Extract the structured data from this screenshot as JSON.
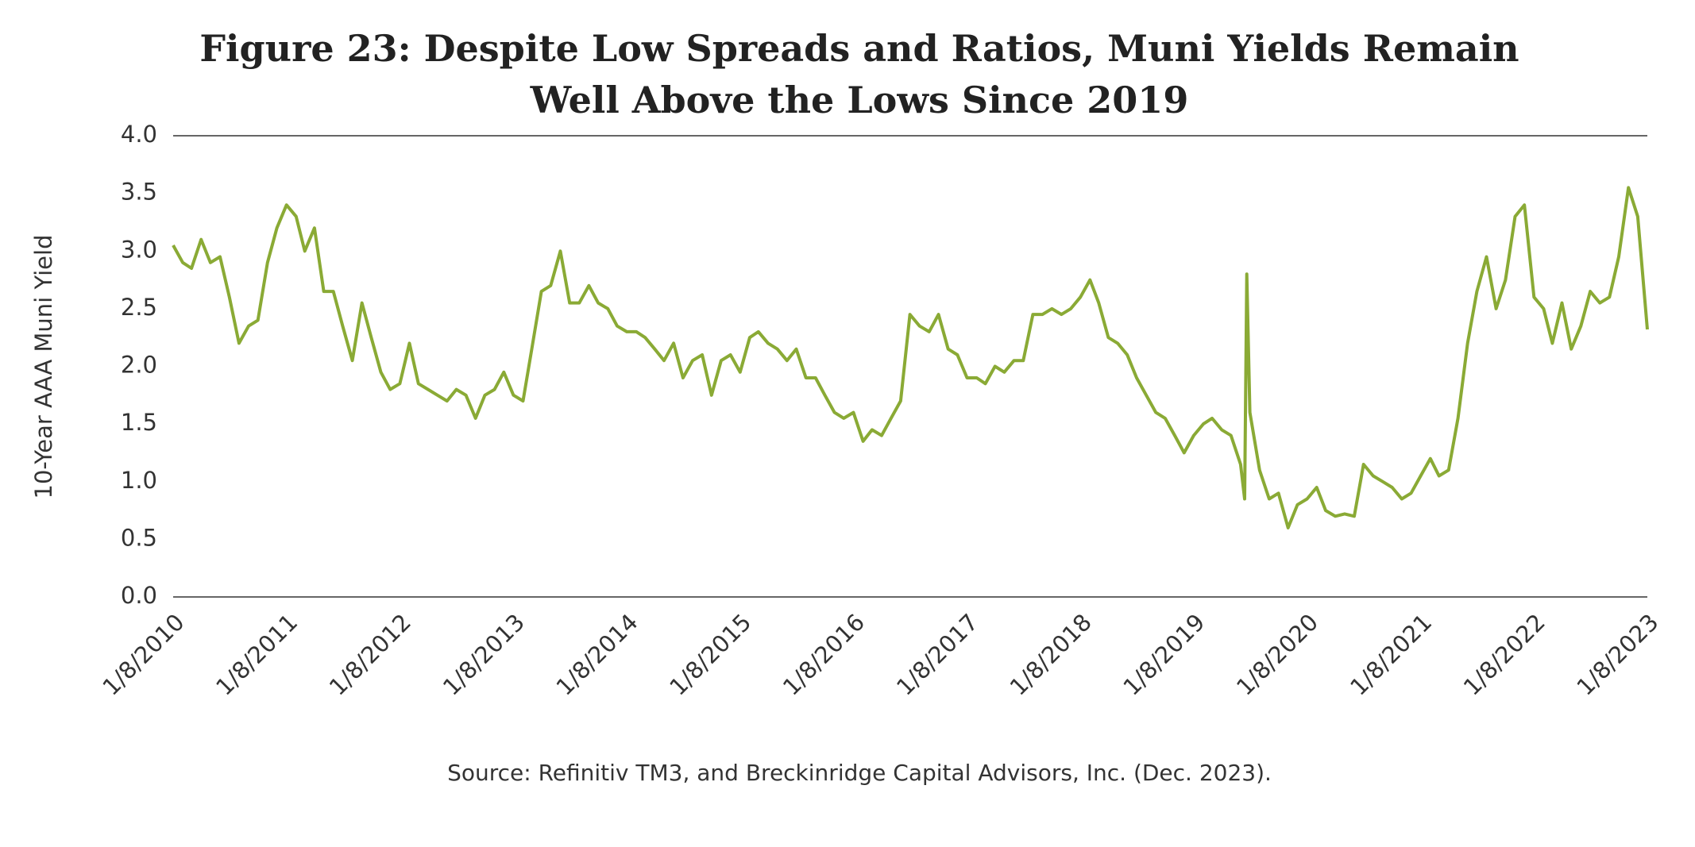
{
  "chart_data": {
    "type": "line",
    "title": "Figure 23: Despite Low Spreads and Ratios, Muni Yields Remain",
    "title_line2": "Well Above the Lows Since 2019",
    "y_label": "10-Year AAA Muni Yield",
    "source": "Source: Refinitiv TM3, and Breckinridge Capital Advisors, Inc. (Dec. 2023).",
    "x": [
      "1/8/2010",
      "2/8/2010",
      "3/8/2010",
      "4/8/2010",
      "5/8/2010",
      "6/8/2010",
      "7/8/2010",
      "8/8/2010",
      "9/8/2010",
      "10/8/2010",
      "11/8/2010",
      "12/8/2010",
      "1/8/2011",
      "2/8/2011",
      "3/8/2011",
      "4/8/2011",
      "5/8/2011",
      "6/8/2011",
      "7/8/2011",
      "8/8/2011",
      "9/8/2011",
      "10/8/2011",
      "11/8/2011",
      "12/8/2011",
      "1/8/2012",
      "2/8/2012",
      "3/8/2012",
      "4/8/2012",
      "5/8/2012",
      "6/8/2012",
      "7/8/2012",
      "8/8/2012",
      "9/8/2012",
      "10/8/2012",
      "11/8/2012",
      "12/8/2012",
      "1/8/2013",
      "2/8/2013",
      "3/8/2013",
      "4/8/2013",
      "5/8/2013",
      "6/8/2013",
      "7/8/2013",
      "8/8/2013",
      "9/8/2013",
      "10/8/2013",
      "11/8/2013",
      "12/8/2013",
      "1/8/2014",
      "2/8/2014",
      "3/8/2014",
      "4/8/2014",
      "5/8/2014",
      "6/8/2014",
      "7/8/2014",
      "8/8/2014",
      "9/8/2014",
      "10/8/2014",
      "11/8/2014",
      "12/8/2014",
      "1/8/2015",
      "2/8/2015",
      "3/8/2015",
      "4/8/2015",
      "5/8/2015",
      "6/8/2015",
      "7/8/2015",
      "8/8/2015",
      "9/8/2015",
      "10/8/2015",
      "11/8/2015",
      "12/8/2015",
      "1/8/2016",
      "2/8/2016",
      "3/8/2016",
      "4/8/2016",
      "5/8/2016",
      "6/8/2016",
      "7/8/2016",
      "8/8/2016",
      "9/8/2016",
      "10/8/2016",
      "11/8/2016",
      "12/8/2016",
      "1/8/2017",
      "2/8/2017",
      "3/8/2017",
      "4/8/2017",
      "5/8/2017",
      "6/8/2017",
      "7/8/2017",
      "8/8/2017",
      "9/8/2017",
      "10/8/2017",
      "11/8/2017",
      "12/8/2017",
      "1/8/2018",
      "2/8/2018",
      "3/8/2018",
      "4/8/2018",
      "5/8/2018",
      "6/8/2018",
      "7/8/2018",
      "8/8/2018",
      "9/8/2018",
      "10/8/2018",
      "11/8/2018",
      "12/8/2018",
      "1/8/2019",
      "2/8/2019",
      "3/8/2019",
      "4/8/2019",
      "5/8/2019",
      "6/8/2019",
      "6/21/2019",
      "6/28/2019",
      "7/8/2019",
      "8/8/2019",
      "9/8/2019",
      "10/8/2019",
      "11/8/2019",
      "12/8/2019",
      "1/8/2020",
      "2/8/2020",
      "3/8/2020",
      "4/8/2020",
      "5/8/2020",
      "6/8/2020",
      "7/8/2020",
      "8/8/2020",
      "9/8/2020",
      "10/8/2020",
      "11/8/2020",
      "12/8/2020",
      "1/8/2021",
      "2/8/2021",
      "3/8/2021",
      "4/8/2021",
      "5/8/2021",
      "6/8/2021",
      "7/8/2021",
      "8/8/2021",
      "9/8/2021",
      "10/8/2021",
      "11/8/2021",
      "12/8/2021",
      "1/8/2022",
      "2/8/2022",
      "3/8/2022",
      "4/8/2022",
      "5/8/2022",
      "6/8/2022",
      "7/8/2022",
      "8/8/2022",
      "9/8/2022",
      "10/8/2022",
      "11/8/2022",
      "12/8/2022",
      "1/8/2023"
    ],
    "series": [
      {
        "name": "10-Year AAA Muni Yield",
        "color": "#8aaa35",
        "values": [
          3.05,
          2.9,
          2.85,
          3.1,
          2.9,
          2.95,
          2.6,
          2.2,
          2.35,
          2.4,
          2.9,
          3.2,
          3.4,
          3.3,
          3.0,
          3.2,
          2.65,
          2.65,
          2.35,
          2.05,
          2.55,
          2.25,
          1.95,
          1.8,
          1.85,
          2.2,
          1.85,
          1.8,
          1.75,
          1.7,
          1.8,
          1.75,
          1.55,
          1.75,
          1.8,
          1.95,
          1.75,
          1.7,
          2.15,
          2.65,
          2.7,
          3.0,
          2.55,
          2.55,
          2.7,
          2.55,
          2.5,
          2.35,
          2.3,
          2.3,
          2.25,
          2.15,
          2.05,
          2.2,
          1.9,
          2.05,
          2.1,
          1.75,
          2.05,
          2.1,
          1.95,
          2.25,
          2.3,
          2.2,
          2.15,
          2.05,
          2.15,
          1.9,
          1.9,
          1.75,
          1.6,
          1.55,
          1.6,
          1.35,
          1.45,
          1.4,
          1.55,
          1.7,
          2.45,
          2.35,
          2.3,
          2.45,
          2.15,
          2.1,
          1.9,
          1.9,
          1.85,
          2.0,
          1.95,
          2.05,
          2.05,
          2.45,
          2.45,
          2.5,
          2.45,
          2.5,
          2.6,
          2.75,
          2.55,
          2.25,
          2.2,
          2.1,
          1.9,
          1.75,
          1.6,
          1.55,
          1.4,
          1.25,
          1.4,
          1.5,
          1.55,
          1.45,
          1.4,
          1.15,
          0.85,
          2.8,
          1.6,
          1.1,
          0.85,
          0.9,
          0.6,
          0.8,
          0.85,
          0.95,
          0.75,
          0.7,
          0.72,
          0.7,
          1.15,
          1.05,
          1.0,
          0.95,
          0.85,
          0.9,
          1.05,
          1.2,
          1.05,
          1.1,
          1.55,
          2.2,
          2.65,
          2.95,
          2.5,
          2.75,
          3.3,
          3.4,
          2.6,
          2.5,
          2.2,
          2.55,
          2.15,
          2.35,
          2.65,
          2.55,
          2.6,
          2.95,
          3.55,
          3.3,
          2.32
        ]
      }
    ],
    "xlim": [
      "1/8/2010",
      "1/8/2023"
    ],
    "xticks": [
      "1/8/2010",
      "1/8/2011",
      "1/8/2012",
      "1/8/2013",
      "1/8/2014",
      "1/8/2015",
      "1/8/2016",
      "1/8/2017",
      "1/8/2018",
      "1/8/2019",
      "1/8/2020",
      "1/8/2021",
      "1/8/2022",
      "1/8/2023"
    ],
    "ylim": [
      0,
      4
    ],
    "yticks": [
      {
        "value": 0,
        "label": "0.0"
      },
      {
        "value": 0.5,
        "label": "0.5"
      },
      {
        "value": 1,
        "label": "1.0"
      },
      {
        "value": 1.5,
        "label": "1.5"
      },
      {
        "value": 2,
        "label": "2.0"
      },
      {
        "value": 2.5,
        "label": "2.5"
      },
      {
        "value": 3,
        "label": "3.0"
      },
      {
        "value": 3.5,
        "label": "3.5"
      },
      {
        "value": 4,
        "label": "4.0"
      }
    ],
    "grid": false
  }
}
